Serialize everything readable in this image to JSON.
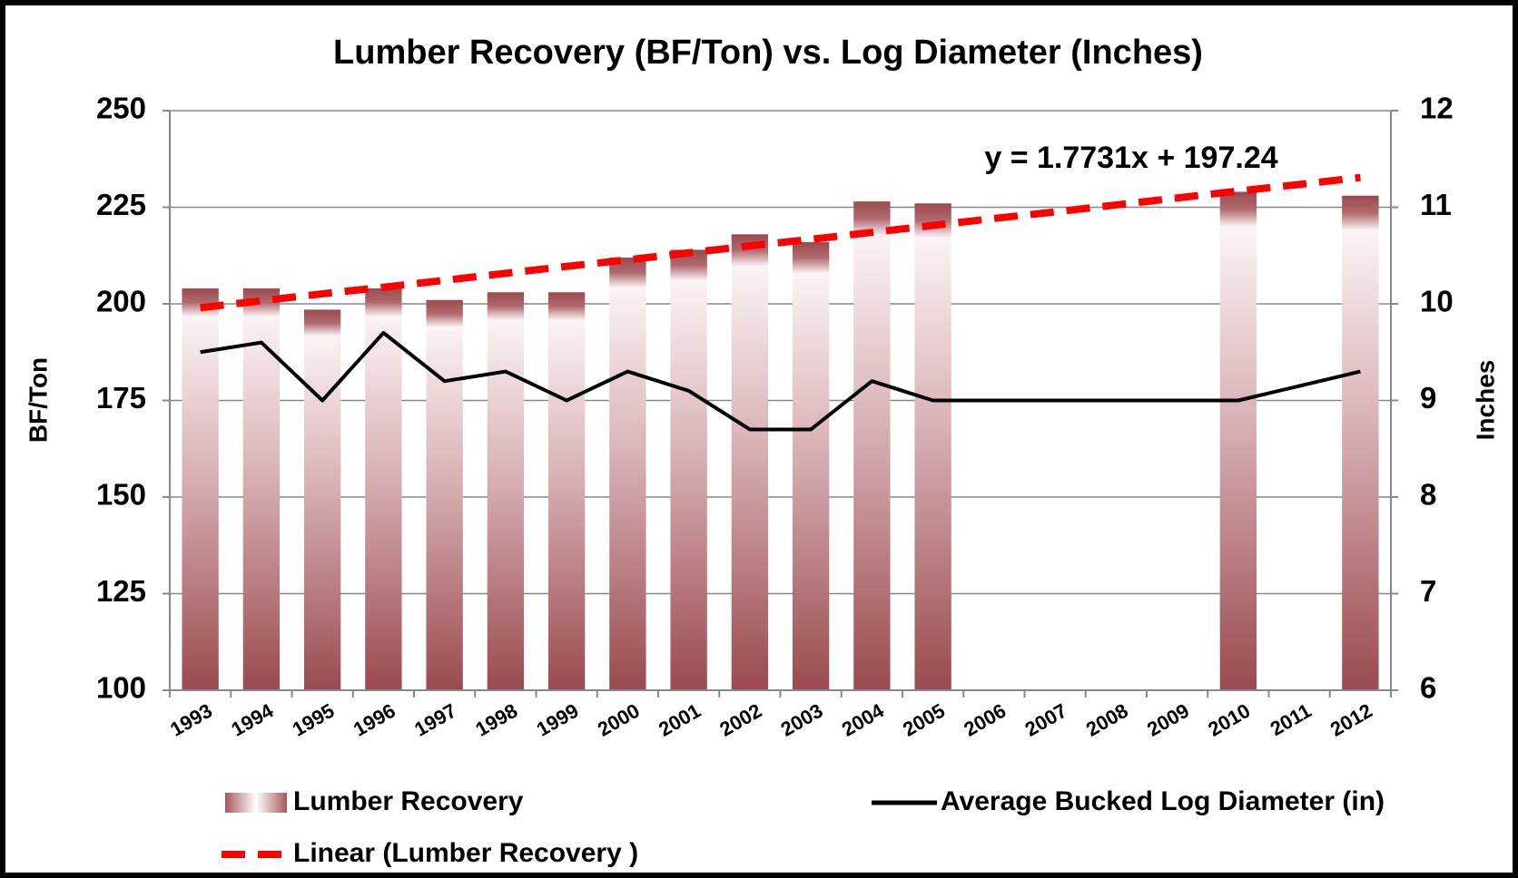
{
  "chart_data": {
    "type": "bar_line",
    "title": "Lumber Recovery (BF/Ton) vs. Log Diameter (Inches)",
    "y_label": "BF/Ton",
    "y2_label": "Inches",
    "annotation": "y = 1.7731x + 197.24",
    "categories": [
      "1993",
      "1994",
      "1995",
      "1996",
      "1997",
      "1998",
      "1999",
      "2000",
      "2001",
      "2002",
      "2003",
      "2004",
      "2005",
      "2006",
      "2007",
      "2008",
      "2009",
      "2010",
      "2011",
      "2012"
    ],
    "series": [
      {
        "name": "Lumber Recovery",
        "type": "bar",
        "color": "#9e4a4f",
        "values": [
          204,
          204,
          198.5,
          204,
          201,
          203,
          203,
          212,
          214,
          218,
          216,
          226.5,
          226,
          null,
          null,
          null,
          null,
          229,
          null,
          228
        ]
      },
      {
        "name": "Average Bucked Log Diameter (in)",
        "type": "line",
        "axis": "y2",
        "color": "#000000",
        "values": [
          9.5,
          9.6,
          9.0,
          9.7,
          9.2,
          9.3,
          9.0,
          9.3,
          9.1,
          8.7,
          8.7,
          9.2,
          9.0,
          9.0,
          9.0,
          9.0,
          9.0,
          9.0,
          9.15,
          9.3
        ]
      },
      {
        "name": "Linear (Lumber Recovery )",
        "type": "trend",
        "color": "#ff0000",
        "values": [
          199.0,
          200.8,
          202.6,
          204.3,
          206.1,
          207.9,
          209.7,
          211.4,
          213.2,
          215.0,
          216.7,
          218.5,
          220.3,
          222.1,
          223.8,
          225.6,
          227.4,
          229.2,
          230.9,
          232.7
        ]
      }
    ],
    "ylim": [
      100,
      250
    ],
    "yticks": [
      100,
      125,
      150,
      175,
      200,
      225,
      250
    ],
    "y2lim": [
      6,
      12
    ],
    "y2ticks": [
      6,
      7,
      8,
      9,
      10,
      11,
      12
    ],
    "grid": true
  }
}
